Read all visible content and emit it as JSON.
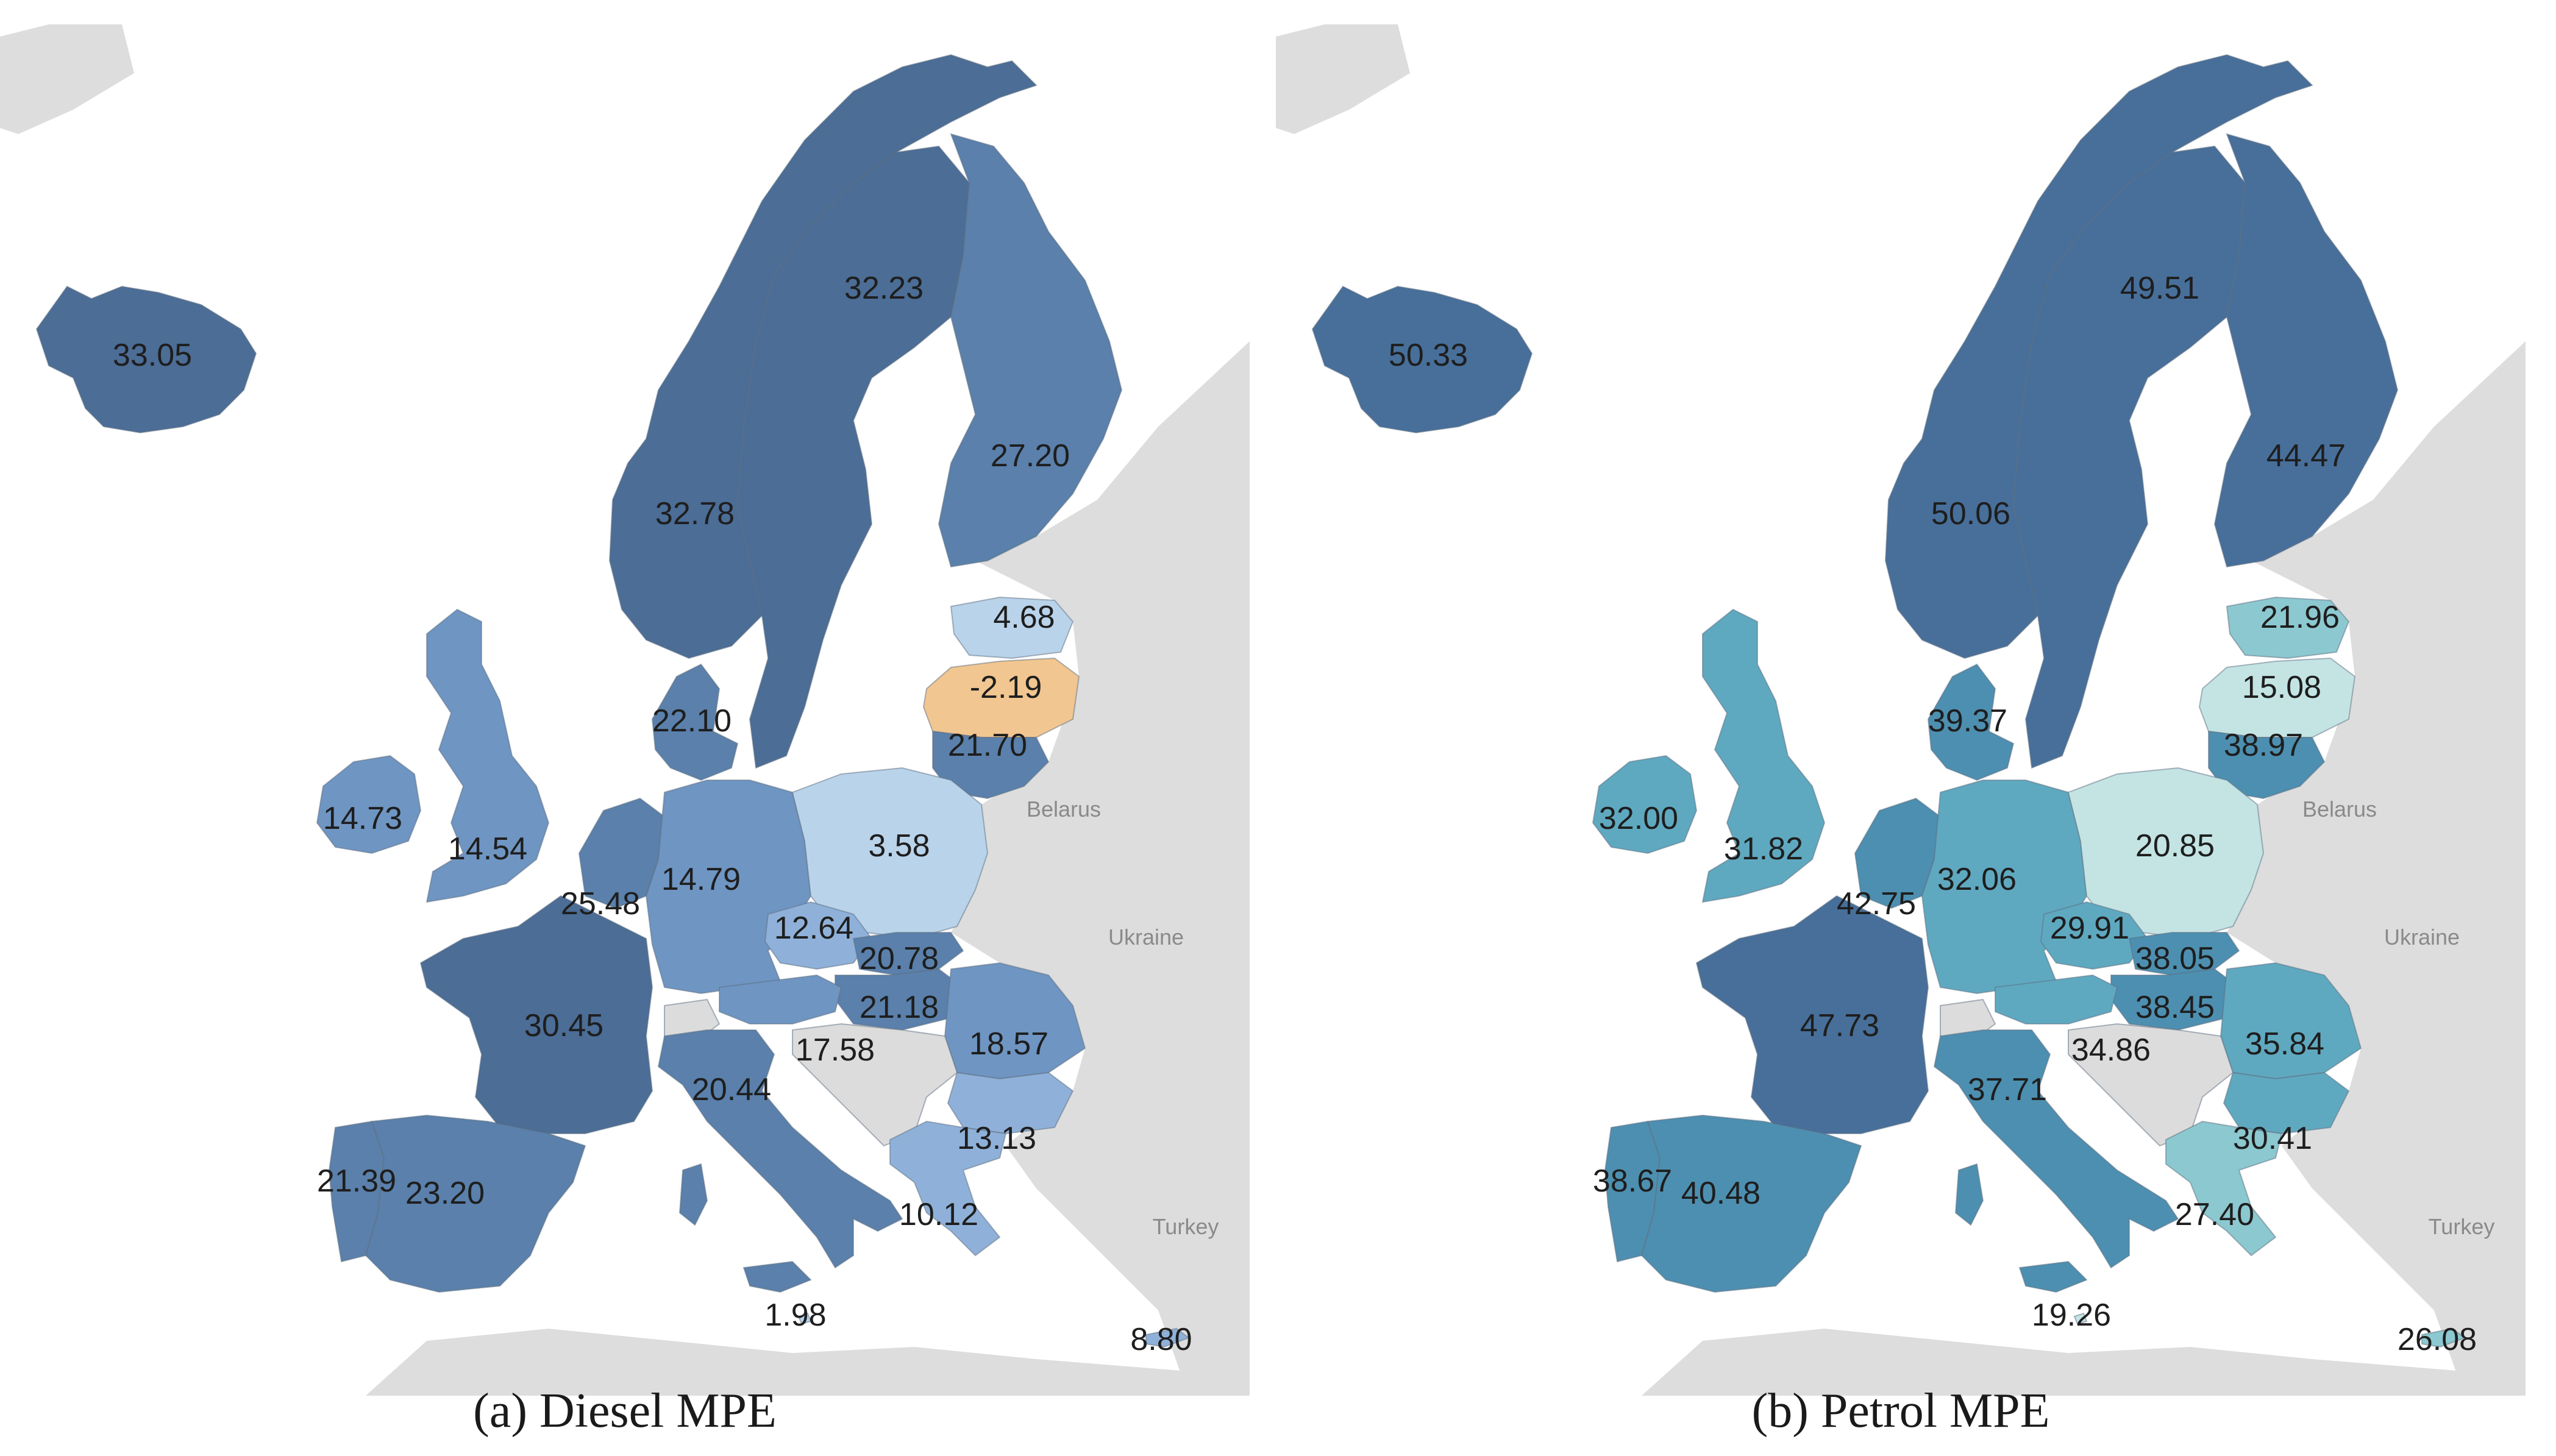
{
  "colors": {
    "ocean": "#ffffff",
    "land": "#dddddd",
    "diesel_scale": [
      "#b9d3ea",
      "#8fb1d9",
      "#6f95c2",
      "#5a80ab",
      "#4b6d96"
    ],
    "negative": "#f2c690",
    "petrol_scale": [
      "#c4e4e4",
      "#8cc8d0",
      "#5fa9c0",
      "#4d8fb0",
      "#476f9a"
    ]
  },
  "panels": [
    {
      "id": "a",
      "caption": "(a) Diesel MPE",
      "metric": "Diesel MPE",
      "geo_labels": [
        "Belarus",
        "Ukraine",
        "Turkey"
      ],
      "values": {
        "iceland": "33.05",
        "norway": "32.78",
        "sweden": "32.23",
        "finland": "27.20",
        "estonia": "4.68",
        "latvia": "-2.19",
        "lithuania": "21.70",
        "denmark": "22.10",
        "ireland": "14.73",
        "uk": "14.54",
        "netherlands": "25.48",
        "germany": "14.79",
        "poland": "3.58",
        "czechia": "12.64",
        "slovakia": "20.78",
        "hungary": "21.18",
        "france": "30.45",
        "austria": "17.58",
        "romania": "18.57",
        "italy": "20.44",
        "bulgaria": "13.13",
        "portugal": "21.39",
        "spain": "23.20",
        "greece": "10.12",
        "malta": "1.98",
        "cyprus": "8.80"
      }
    },
    {
      "id": "b",
      "caption": "(b) Petrol MPE",
      "metric": "Petrol MPE",
      "geo_labels": [
        "Belarus",
        "Ukraine",
        "Turkey"
      ],
      "values": {
        "iceland": "50.33",
        "norway": "50.06",
        "sweden": "49.51",
        "finland": "44.47",
        "estonia": "21.96",
        "latvia": "15.08",
        "lithuania": "38.97",
        "denmark": "39.37",
        "ireland": "32.00",
        "uk": "31.82",
        "netherlands": "42.75",
        "germany": "32.06",
        "poland": "20.85",
        "czechia": "29.91",
        "slovakia": "38.05",
        "hungary": "38.45",
        "france": "47.73",
        "austria": "34.86",
        "romania": "35.84",
        "italy": "37.71",
        "bulgaria": "30.41",
        "portugal": "38.67",
        "spain": "40.48",
        "greece": "27.40",
        "malta": "19.26",
        "cyprus": "26.08"
      }
    }
  ]
}
